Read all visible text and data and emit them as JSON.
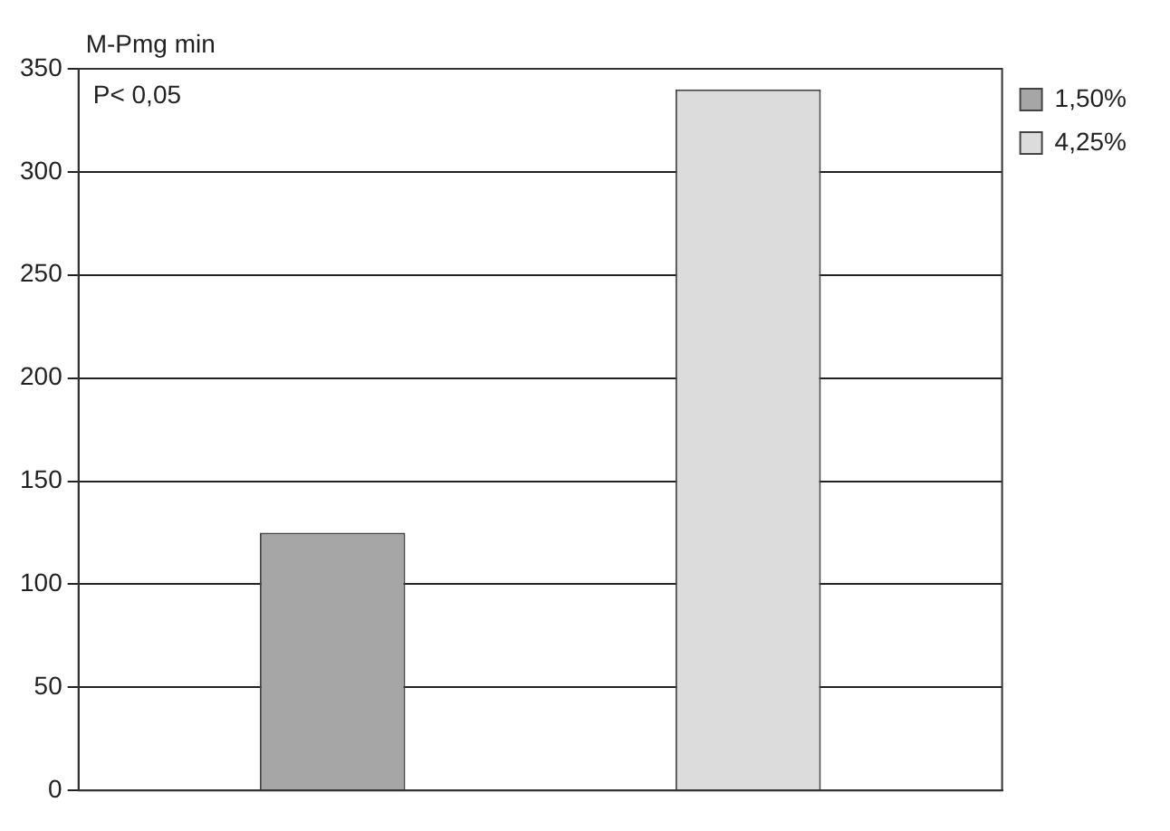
{
  "chart_data": {
    "type": "bar",
    "ylabel": "M-Pmg min",
    "annotations": [
      "P< 0,05"
    ],
    "categories": [
      null
    ],
    "series": [
      {
        "name": "1,50%",
        "color": "#a6a6a6",
        "values": [
          125
        ]
      },
      {
        "name": "4,25%",
        "color": "#dcdcdc",
        "values": [
          340
        ]
      }
    ],
    "ylim": [
      0,
      350
    ],
    "yticks": [
      0,
      50,
      100,
      150,
      200,
      250,
      300,
      350
    ],
    "grid": "y",
    "legend": "top right"
  }
}
